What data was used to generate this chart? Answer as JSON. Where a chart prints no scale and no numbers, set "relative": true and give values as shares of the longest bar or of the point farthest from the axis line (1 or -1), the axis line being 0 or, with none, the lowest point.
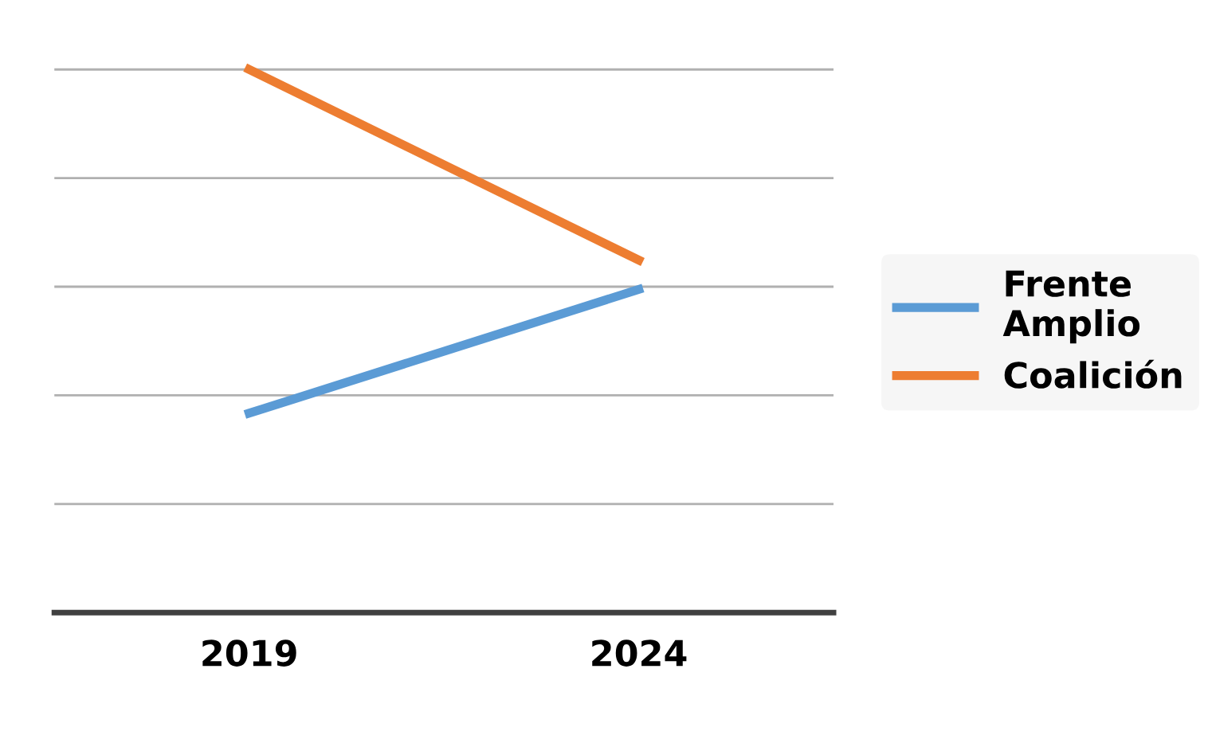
{
  "chart_data": {
    "type": "line",
    "relative": true,
    "categories": [
      "2019",
      "2024"
    ],
    "series": [
      {
        "name": "Frente Amplio",
        "color": "#5b9bd5",
        "values": [
          0.367,
          0.595
        ]
      },
      {
        "name": "Coalición",
        "color": "#ed7d31",
        "values": [
          1,
          0.649
        ]
      }
    ],
    "grid": "y",
    "legend": "right",
    "marker": "none",
    "line_style": "solid",
    "tick_labels": "x"
  }
}
